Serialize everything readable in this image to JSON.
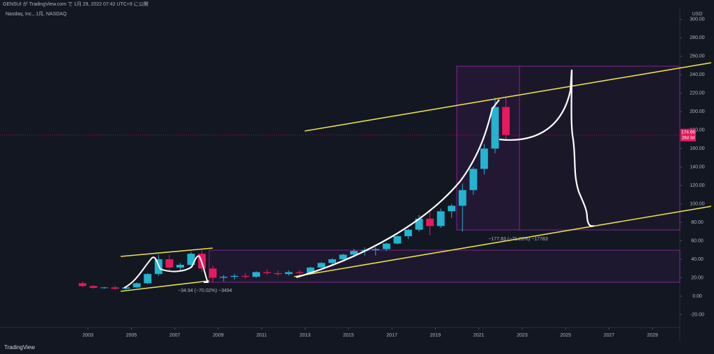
{
  "header": "GENSUI が TradingView.com で 1月 29, 2022 07:42 UTC+9 に公開",
  "footer_brand": "TradingView",
  "chart_data": {
    "type": "candlestick",
    "title": "Nasdaq, Inc., 1月, NASDAQ",
    "currency": "USD",
    "last_price": 174.66,
    "last_price_countdown": "28d 3d",
    "annotations": [
      "−34.94 (−70.02%) −3494",
      "−177.83 (−71.28%) −17783"
    ],
    "up_color": "#22b4d0",
    "down_color": "#e8195e",
    "x": [
      2002.5,
      2003.0,
      2003.5,
      2004.0,
      2004.5,
      2005.0,
      2005.5,
      2006.0,
      2006.5,
      2007.0,
      2007.5,
      2008.0,
      2008.5,
      2009.0,
      2009.5,
      2010.0,
      2010.5,
      2011.0,
      2011.5,
      2012.0,
      2012.5,
      2013.0,
      2013.5,
      2014.0,
      2014.5,
      2015.0,
      2015.5,
      2016.0,
      2016.5,
      2017.0,
      2017.5,
      2018.0,
      2018.5,
      2019.0,
      2019.5,
      2020.0,
      2020.5,
      2021.0,
      2021.5,
      2022.0
    ],
    "open": [
      14,
      11,
      9,
      9.5,
      8,
      9.5,
      14,
      24,
      40,
      31,
      34,
      46,
      30,
      20,
      21,
      22,
      21,
      26,
      25,
      24,
      26,
      25,
      31,
      36,
      40,
      45,
      49,
      50,
      51,
      57,
      65,
      72,
      84,
      76,
      92,
      98,
      115,
      138,
      160,
      205
    ],
    "high": [
      16,
      12,
      10,
      11,
      10,
      15,
      25,
      45,
      45,
      36,
      48,
      50,
      33,
      23,
      24,
      25,
      27,
      29,
      28,
      28,
      28,
      32,
      37,
      41,
      46,
      51,
      53,
      53,
      58,
      66,
      73,
      88,
      94,
      95,
      100,
      122,
      140,
      165,
      215,
      216
    ],
    "low": [
      10,
      8,
      8,
      7,
      7,
      9,
      13,
      22,
      28,
      28,
      32,
      26,
      15,
      16,
      18,
      19,
      20,
      23,
      22,
      22,
      22,
      24,
      30,
      34,
      39,
      44,
      44,
      44,
      49,
      56,
      62,
      70,
      66,
      74,
      85,
      70,
      110,
      132,
      155,
      170
    ],
    "close": [
      11,
      9,
      9.5,
      8,
      9.5,
      14,
      24,
      40,
      31,
      34,
      46,
      30,
      20,
      21,
      22,
      21,
      26,
      25,
      24,
      26,
      25,
      31,
      36,
      40,
      45,
      49,
      50,
      51,
      57,
      65,
      72,
      84,
      76,
      92,
      98,
      115,
      138,
      160,
      205,
      175
    ],
    "xlim": [
      1998.95,
      2030.26
    ],
    "xticks": [
      2003,
      2005,
      2007,
      2009,
      2011,
      2013,
      2015,
      2017,
      2019,
      2021,
      2023,
      2025,
      2027,
      2029
    ],
    "ylim": [
      -34,
      312
    ],
    "yticks": [
      {
        "value": -20,
        "label": "-20.00"
      },
      {
        "value": 0,
        "label": "0.00"
      },
      {
        "value": 20,
        "label": "20.00"
      },
      {
        "value": 40,
        "label": "40.00"
      },
      {
        "value": 60,
        "label": "60.00"
      },
      {
        "value": 80,
        "label": "80.00"
      },
      {
        "value": 100,
        "label": "100.00"
      },
      {
        "value": 120,
        "label": "120.00"
      },
      {
        "value": 140,
        "label": "140.00"
      },
      {
        "value": 160,
        "label": "160.00"
      },
      {
        "value": 180,
        "label": "180.00"
      },
      {
        "value": 200,
        "label": "200.00"
      },
      {
        "value": 220,
        "label": "220.00"
      },
      {
        "value": 240,
        "label": "240.00"
      },
      {
        "value": 260,
        "label": "260.00"
      },
      {
        "value": 280,
        "label": "280.00"
      },
      {
        "value": 300,
        "label": "300.00"
      }
    ],
    "grid": false
  }
}
